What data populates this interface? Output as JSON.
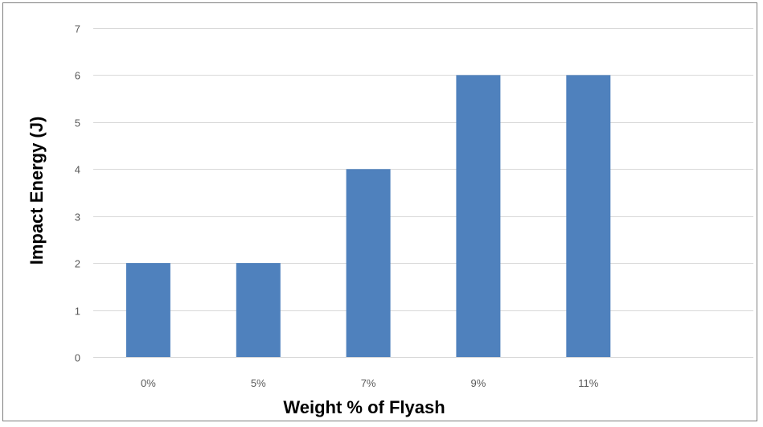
{
  "chart_data": {
    "type": "bar",
    "categories": [
      "0%",
      "5%",
      "7%",
      "9%",
      "11%",
      ""
    ],
    "values": [
      2,
      2,
      4,
      6,
      6,
      null
    ],
    "title": "",
    "xlabel": "Weight % of Flyash",
    "ylabel": "Impact Energy (J)",
    "ylim": [
      0,
      7
    ],
    "yticks": [
      0,
      1,
      2,
      3,
      4,
      5,
      6,
      7
    ],
    "grid": true,
    "legend": "none",
    "colors": {
      "bar": "#4f81bd",
      "grid": "#d9d9d9",
      "tick_text": "#595959"
    }
  }
}
